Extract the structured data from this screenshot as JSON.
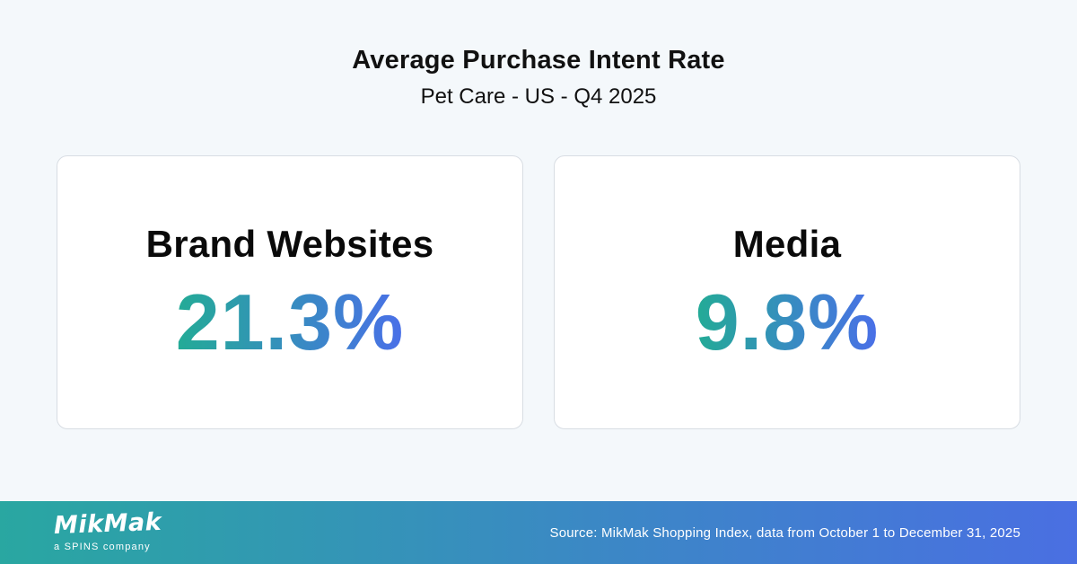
{
  "header": {
    "title": "Average Purchase Intent Rate",
    "subtitle": "Pet Care - US - Q4 2025"
  },
  "cards": [
    {
      "label": "Brand Websites",
      "value": "21.3%"
    },
    {
      "label": "Media",
      "value": "9.8%"
    }
  ],
  "footer": {
    "logo_text": "MikMak",
    "logo_subtext": "a SPINS company",
    "source_text": "Source: MikMak Shopping Index, data from October 1 to December 31, 2025"
  },
  "colors": {
    "background": "#F4F8FB",
    "card_background": "#FFFFFF",
    "card_border": "#D8DDE3",
    "title_color": "#111111",
    "value_gradient_start": "#23AB96",
    "value_gradient_end": "#4A6FE8",
    "footer_gradient_start": "#29A7A1",
    "footer_gradient_end": "#4A6FE2",
    "footer_text_color": "#FFFFFF"
  },
  "chart_data": {
    "type": "table",
    "title": "Average Purchase Intent Rate",
    "subtitle": "Pet Care - US - Q4 2025",
    "categories": [
      "Brand Websites",
      "Media"
    ],
    "values": [
      21.3,
      9.8
    ],
    "unit": "%",
    "source": "Source: MikMak Shopping Index, data from October 1 to December 31, 2025"
  }
}
